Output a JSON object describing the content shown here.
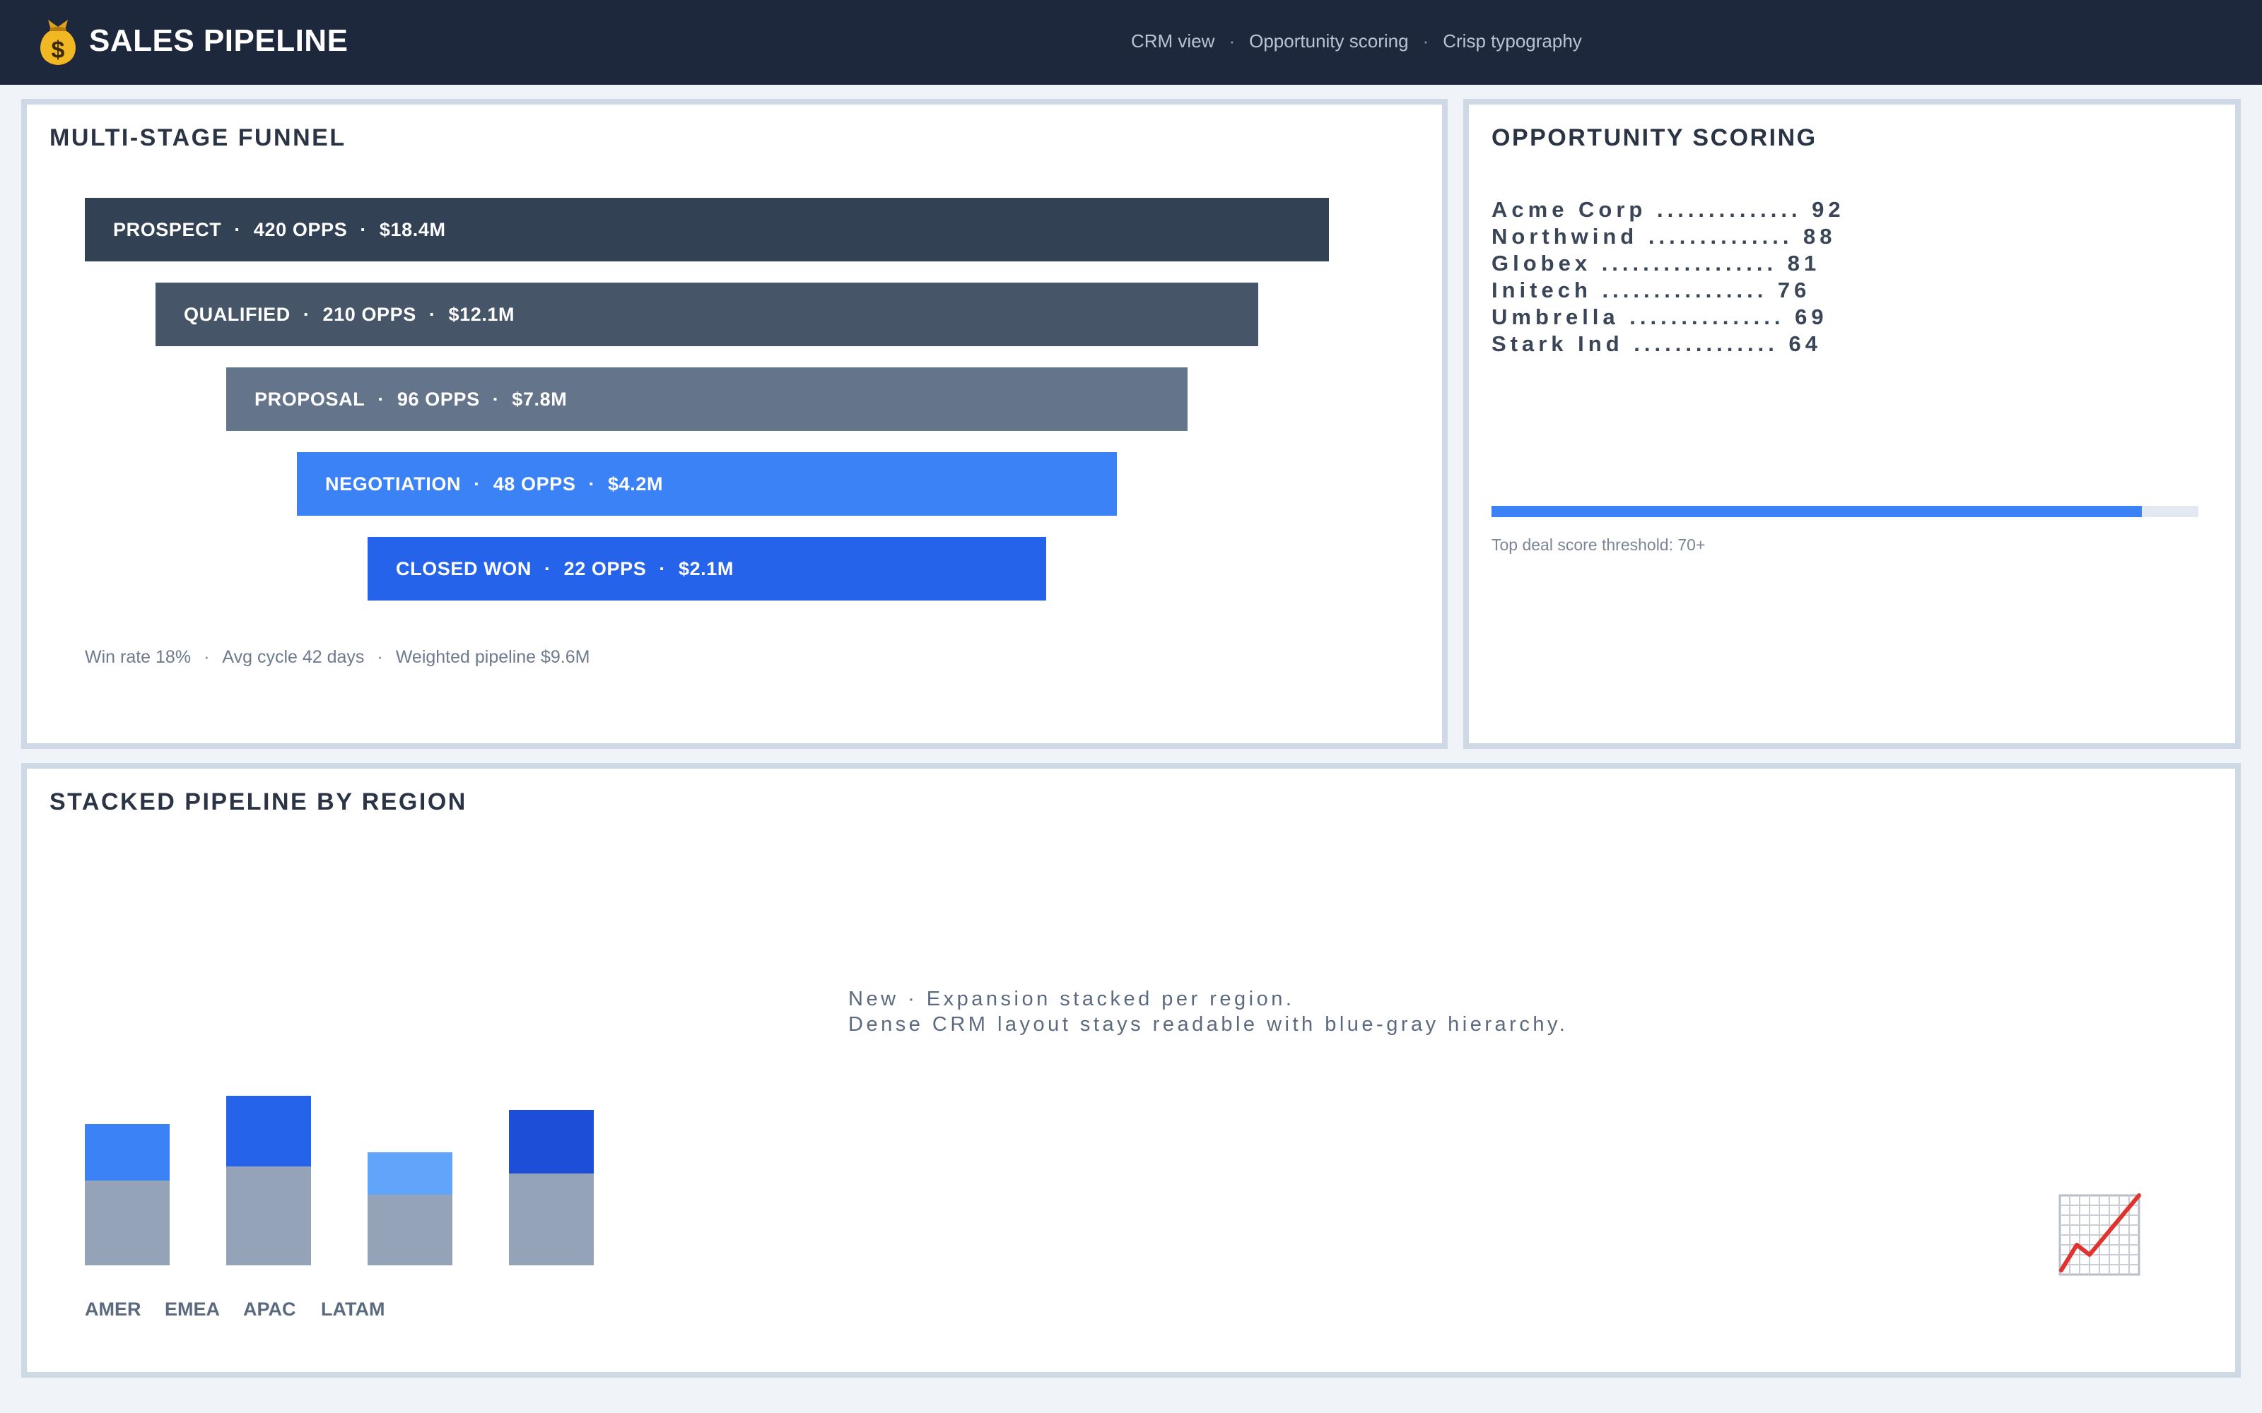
{
  "header": {
    "title": "SALES PIPELINE",
    "nav": [
      "CRM view",
      "Opportunity scoring",
      "Crisp typography"
    ],
    "separator": "·",
    "icon": "money-bag-icon"
  },
  "funnel": {
    "title": "MULTI-STAGE FUNNEL",
    "separator": "·",
    "stages": [
      {
        "name": "PROSPECT",
        "opps": "420 OPPS",
        "value": "$18.4M",
        "color": "#334155"
      },
      {
        "name": "QUALIFIED",
        "opps": "210 OPPS",
        "value": "$12.1M",
        "color": "#475569"
      },
      {
        "name": "PROPOSAL",
        "opps": "96 OPPS",
        "value": "$7.8M",
        "color": "#64748b"
      },
      {
        "name": "NEGOTIATION",
        "opps": "48 OPPS",
        "value": "$4.2M",
        "color": "#3b82f6"
      },
      {
        "name": "CLOSED WON",
        "opps": "22 OPPS",
        "value": "$2.1M",
        "color": "#2563eb"
      }
    ],
    "footer": [
      "Win rate 18%",
      "Avg cycle 42 days",
      "Weighted pipeline $9.6M"
    ]
  },
  "scoring": {
    "title": "OPPORTUNITY SCORING",
    "items": [
      "Acme Corp .............. 92",
      "Northwind .............. 88",
      "Globex ................. 81",
      "Initech ................ 76",
      "Umbrella ............... 69",
      "Stark Ind .............. 64"
    ],
    "threshold_fill": 0.92,
    "threshold_caption": "Top deal score threshold: 70+",
    "colors": {
      "fill": "#3b82f6",
      "track": "#e4e9f1"
    }
  },
  "region": {
    "title": "STACKED PIPELINE BY REGION",
    "note_lines": [
      "New  ·  Expansion stacked per region.",
      "Dense CRM layout stays readable with blue-gray hierarchy."
    ],
    "icon": "chart-increasing-icon",
    "chart_data": {
      "type": "bar",
      "stacked": true,
      "categories": [
        "AMER",
        "EMEA",
        "APAC",
        "LATAM"
      ],
      "series": [
        {
          "values": [
            60,
            70,
            50,
            65
          ],
          "color": "#94a3b8"
        },
        {
          "values": [
            40,
            50,
            30,
            45
          ],
          "colors": [
            "#3b82f6",
            "#2563eb",
            "#60a5fa",
            "#1d4ed8"
          ]
        }
      ],
      "ylim": [
        0,
        120
      ],
      "grid": false
    }
  }
}
